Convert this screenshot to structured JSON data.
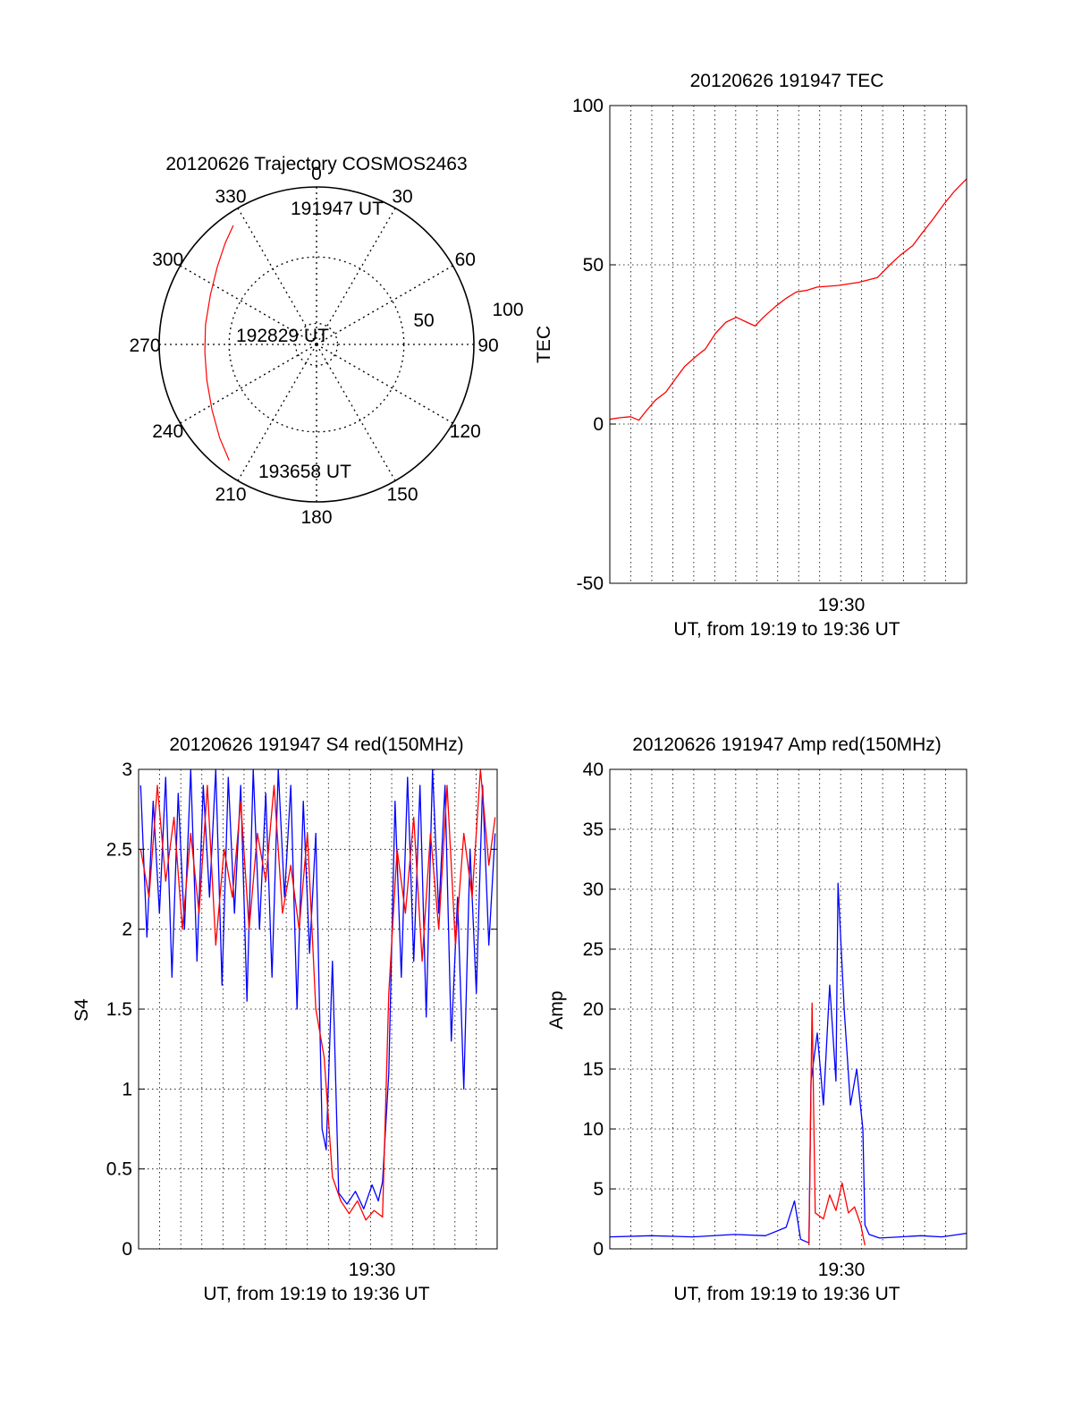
{
  "colors": {
    "red": "#ff0000",
    "blue": "#0000ff"
  },
  "chart_data": [
    {
      "type": "polar",
      "title": "20120626 Trajectory COSMOS2463",
      "angle_ticks": [
        "0",
        "30",
        "60",
        "90",
        "120",
        "150",
        "180",
        "210",
        "240",
        "270",
        "300",
        "330"
      ],
      "radial_ticks": [
        "50",
        "100"
      ],
      "track_label_start": "191947 UT",
      "track_label_mid": "192829 UT",
      "track_label_end": "193658 UT",
      "track": [
        {
          "az": 325.0,
          "zenith": 83.0
        },
        {
          "az": 318.0,
          "zenith": 78.0
        },
        {
          "az": 308.0,
          "zenith": 72.0
        },
        {
          "az": 295.0,
          "zenith": 67.0
        },
        {
          "az": 280.0,
          "zenith": 64.5
        },
        {
          "az": 266.0,
          "zenith": 64.0
        },
        {
          "az": 252.0,
          "zenith": 66.0
        },
        {
          "az": 238.0,
          "zenith": 70.5
        },
        {
          "az": 226.0,
          "zenith": 77.0
        },
        {
          "az": 217.0,
          "zenith": 83.0
        }
      ]
    },
    {
      "type": "line",
      "title": "20120626 191947 TEC",
      "ylabel": "TEC",
      "xlabel": "UT, from 19:19 to 19:36 UT",
      "xtick_label": "19:30",
      "yticks": [
        "-50",
        "0",
        "50",
        "100"
      ],
      "ylim": [
        -50,
        100
      ],
      "xlim": [
        0,
        17.2
      ],
      "series": [
        {
          "color": "red",
          "points": [
            [
              0.0,
              1.5
            ],
            [
              0.5,
              2.0
            ],
            [
              1.0,
              2.3
            ],
            [
              1.4,
              1.2
            ],
            [
              1.8,
              4.5
            ],
            [
              2.2,
              7.5
            ],
            [
              2.7,
              10.0
            ],
            [
              3.2,
              14.5
            ],
            [
              3.6,
              18.0
            ],
            [
              4.2,
              21.5
            ],
            [
              4.6,
              23.5
            ],
            [
              5.1,
              28.5
            ],
            [
              5.6,
              32.0
            ],
            [
              6.1,
              33.5
            ],
            [
              6.6,
              32.0
            ],
            [
              7.0,
              30.8
            ],
            [
              7.4,
              33.5
            ],
            [
              8.0,
              37.0
            ],
            [
              8.5,
              39.5
            ],
            [
              9.0,
              41.5
            ],
            [
              9.5,
              42.0
            ],
            [
              10.0,
              43.0
            ],
            [
              11.0,
              43.5
            ],
            [
              12.0,
              44.5
            ],
            [
              12.9,
              46.0
            ],
            [
              13.5,
              50.0
            ],
            [
              14.0,
              53.0
            ],
            [
              14.6,
              56.0
            ],
            [
              15.0,
              59.5
            ],
            [
              15.6,
              64.5
            ],
            [
              16.1,
              69.0
            ],
            [
              16.6,
              73.0
            ],
            [
              17.2,
              77.0
            ]
          ]
        }
      ]
    },
    {
      "type": "line",
      "title": "20120626 191947 S4 red(150MHz)",
      "ylabel": "S4",
      "xlabel": "UT, from 19:19 to 19:36 UT",
      "xtick_label": "19:30",
      "yticks": [
        "0",
        "0.5",
        "1",
        "1.5",
        "2",
        "2.5",
        "3"
      ],
      "ylim": [
        0,
        3
      ],
      "xlim": [
        0,
        17.2
      ],
      "series": [
        {
          "name": "blue",
          "color": "blue",
          "points": [
            [
              0.1,
              2.9
            ],
            [
              0.4,
              1.95
            ],
            [
              0.7,
              2.8
            ],
            [
              1.0,
              2.1
            ],
            [
              1.3,
              2.95
            ],
            [
              1.6,
              1.7
            ],
            [
              1.9,
              2.85
            ],
            [
              2.2,
              2.0
            ],
            [
              2.5,
              3.0
            ],
            [
              2.8,
              1.8
            ],
            [
              3.1,
              2.9
            ],
            [
              3.4,
              2.2
            ],
            [
              3.7,
              3.0
            ],
            [
              4.0,
              1.65
            ],
            [
              4.3,
              2.95
            ],
            [
              4.6,
              2.1
            ],
            [
              4.9,
              2.9
            ],
            [
              5.2,
              1.55
            ],
            [
              5.5,
              3.0
            ],
            [
              5.8,
              2.0
            ],
            [
              6.1,
              2.85
            ],
            [
              6.4,
              1.7
            ],
            [
              6.7,
              3.0
            ],
            [
              7.0,
              2.2
            ],
            [
              7.3,
              2.9
            ],
            [
              7.6,
              1.5
            ],
            [
              7.9,
              2.8
            ],
            [
              8.2,
              1.85
            ],
            [
              8.5,
              2.6
            ],
            [
              8.8,
              0.75
            ],
            [
              9.0,
              0.62
            ],
            [
              9.3,
              1.8
            ],
            [
              9.6,
              0.35
            ],
            [
              10.0,
              0.28
            ],
            [
              10.4,
              0.36
            ],
            [
              10.8,
              0.25
            ],
            [
              11.2,
              0.4
            ],
            [
              11.5,
              0.3
            ],
            [
              11.7,
              0.42
            ],
            [
              12.0,
              1.1
            ],
            [
              12.3,
              2.8
            ],
            [
              12.6,
              1.7
            ],
            [
              12.9,
              2.95
            ],
            [
              13.2,
              1.8
            ],
            [
              13.5,
              2.9
            ],
            [
              13.8,
              1.45
            ],
            [
              14.1,
              3.0
            ],
            [
              14.4,
              2.1
            ],
            [
              14.7,
              2.9
            ],
            [
              15.0,
              1.3
            ],
            [
              15.3,
              2.2
            ],
            [
              15.6,
              1.0
            ],
            [
              15.9,
              2.5
            ],
            [
              16.2,
              1.6
            ],
            [
              16.5,
              2.9
            ],
            [
              16.8,
              1.9
            ],
            [
              17.1,
              2.6
            ]
          ]
        },
        {
          "name": "red",
          "color": "red",
          "points": [
            [
              0.1,
              2.5
            ],
            [
              0.5,
              2.2
            ],
            [
              0.9,
              2.9
            ],
            [
              1.3,
              2.3
            ],
            [
              1.7,
              2.7
            ],
            [
              2.1,
              2.0
            ],
            [
              2.5,
              2.6
            ],
            [
              2.9,
              2.1
            ],
            [
              3.3,
              2.9
            ],
            [
              3.7,
              1.9
            ],
            [
              4.1,
              2.5
            ],
            [
              4.5,
              2.2
            ],
            [
              4.9,
              2.8
            ],
            [
              5.3,
              2.0
            ],
            [
              5.7,
              2.6
            ],
            [
              6.1,
              2.3
            ],
            [
              6.5,
              2.9
            ],
            [
              6.9,
              2.1
            ],
            [
              7.3,
              2.4
            ],
            [
              7.7,
              2.0
            ],
            [
              8.1,
              2.6
            ],
            [
              8.5,
              1.5
            ],
            [
              8.9,
              1.2
            ],
            [
              9.3,
              0.45
            ],
            [
              9.7,
              0.3
            ],
            [
              10.1,
              0.22
            ],
            [
              10.5,
              0.3
            ],
            [
              10.9,
              0.18
            ],
            [
              11.3,
              0.24
            ],
            [
              11.7,
              0.2
            ],
            [
              12.0,
              1.6
            ],
            [
              12.4,
              2.5
            ],
            [
              12.8,
              2.1
            ],
            [
              13.2,
              2.7
            ],
            [
              13.6,
              1.8
            ],
            [
              14.0,
              2.6
            ],
            [
              14.4,
              2.0
            ],
            [
              14.8,
              2.9
            ],
            [
              15.2,
              1.9
            ],
            [
              15.6,
              2.6
            ],
            [
              16.0,
              2.2
            ],
            [
              16.4,
              3.0
            ],
            [
              16.8,
              2.4
            ],
            [
              17.1,
              2.7
            ]
          ]
        }
      ]
    },
    {
      "type": "line",
      "title": "20120626 191947 Amp red(150MHz)",
      "ylabel": "Amp",
      "xlabel": "UT, from 19:19 to 19:36 UT",
      "xtick_label": "19:30",
      "yticks": [
        "0",
        "5",
        "10",
        "15",
        "20",
        "25",
        "30",
        "35",
        "40"
      ],
      "ylim": [
        0,
        40
      ],
      "xlim": [
        0,
        17.2
      ],
      "series": [
        {
          "name": "blue",
          "color": "blue",
          "points": [
            [
              0.0,
              1.0
            ],
            [
              2.0,
              1.1
            ],
            [
              4.0,
              1.0
            ],
            [
              6.0,
              1.2
            ],
            [
              7.5,
              1.1
            ],
            [
              8.5,
              1.8
            ],
            [
              8.9,
              4.0
            ],
            [
              9.2,
              0.8
            ],
            [
              9.6,
              0.5
            ],
            [
              9.7,
              14.0
            ],
            [
              10.0,
              18.0
            ],
            [
              10.3,
              12.0
            ],
            [
              10.6,
              22.0
            ],
            [
              10.9,
              14.0
            ],
            [
              11.0,
              30.5
            ],
            [
              11.3,
              20.0
            ],
            [
              11.6,
              12.0
            ],
            [
              11.9,
              15.0
            ],
            [
              12.2,
              10.0
            ],
            [
              12.3,
              2.0
            ],
            [
              12.5,
              1.2
            ],
            [
              13.0,
              0.9
            ],
            [
              14.0,
              1.0
            ],
            [
              15.0,
              1.1
            ],
            [
              16.0,
              1.0
            ],
            [
              17.2,
              1.3
            ]
          ]
        },
        {
          "name": "red",
          "color": "red",
          "points": [
            [
              9.6,
              0.3
            ],
            [
              9.75,
              20.5
            ],
            [
              9.9,
              3.0
            ],
            [
              10.3,
              2.5
            ],
            [
              10.6,
              4.5
            ],
            [
              10.9,
              3.2
            ],
            [
              11.2,
              5.5
            ],
            [
              11.5,
              3.0
            ],
            [
              11.8,
              3.5
            ],
            [
              12.1,
              2.0
            ],
            [
              12.3,
              0.3
            ]
          ]
        }
      ]
    }
  ]
}
